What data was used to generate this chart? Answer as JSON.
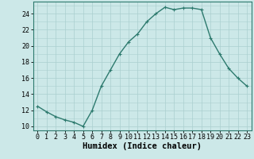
{
  "x": [
    0,
    1,
    2,
    3,
    4,
    5,
    6,
    7,
    8,
    9,
    10,
    11,
    12,
    13,
    14,
    15,
    16,
    17,
    18,
    19,
    20,
    21,
    22,
    23
  ],
  "y": [
    12.5,
    11.8,
    11.2,
    10.8,
    10.5,
    10.0,
    12.0,
    15.0,
    17.0,
    19.0,
    20.5,
    21.5,
    23.0,
    24.0,
    24.8,
    24.5,
    24.7,
    24.7,
    24.5,
    21.0,
    19.0,
    17.2,
    16.0,
    15.0
  ],
  "line_color": "#2d7a6e",
  "marker": "+",
  "marker_size": 3,
  "line_width": 1.0,
  "xlabel": "Humidex (Indice chaleur)",
  "xlabel_fontsize": 7.5,
  "tick_fontsize": 6.0,
  "ylim": [
    9.5,
    25.5
  ],
  "xlim": [
    -0.5,
    23.5
  ],
  "yticks": [
    10,
    12,
    14,
    16,
    18,
    20,
    22,
    24
  ],
  "xticks": [
    0,
    1,
    2,
    3,
    4,
    5,
    6,
    7,
    8,
    9,
    10,
    11,
    12,
    13,
    14,
    15,
    16,
    17,
    18,
    19,
    20,
    21,
    22,
    23
  ],
  "bg_color": "#cce8e8",
  "grid_color": "#aacfcf",
  "axes_edge_color": "#2d7a6e"
}
